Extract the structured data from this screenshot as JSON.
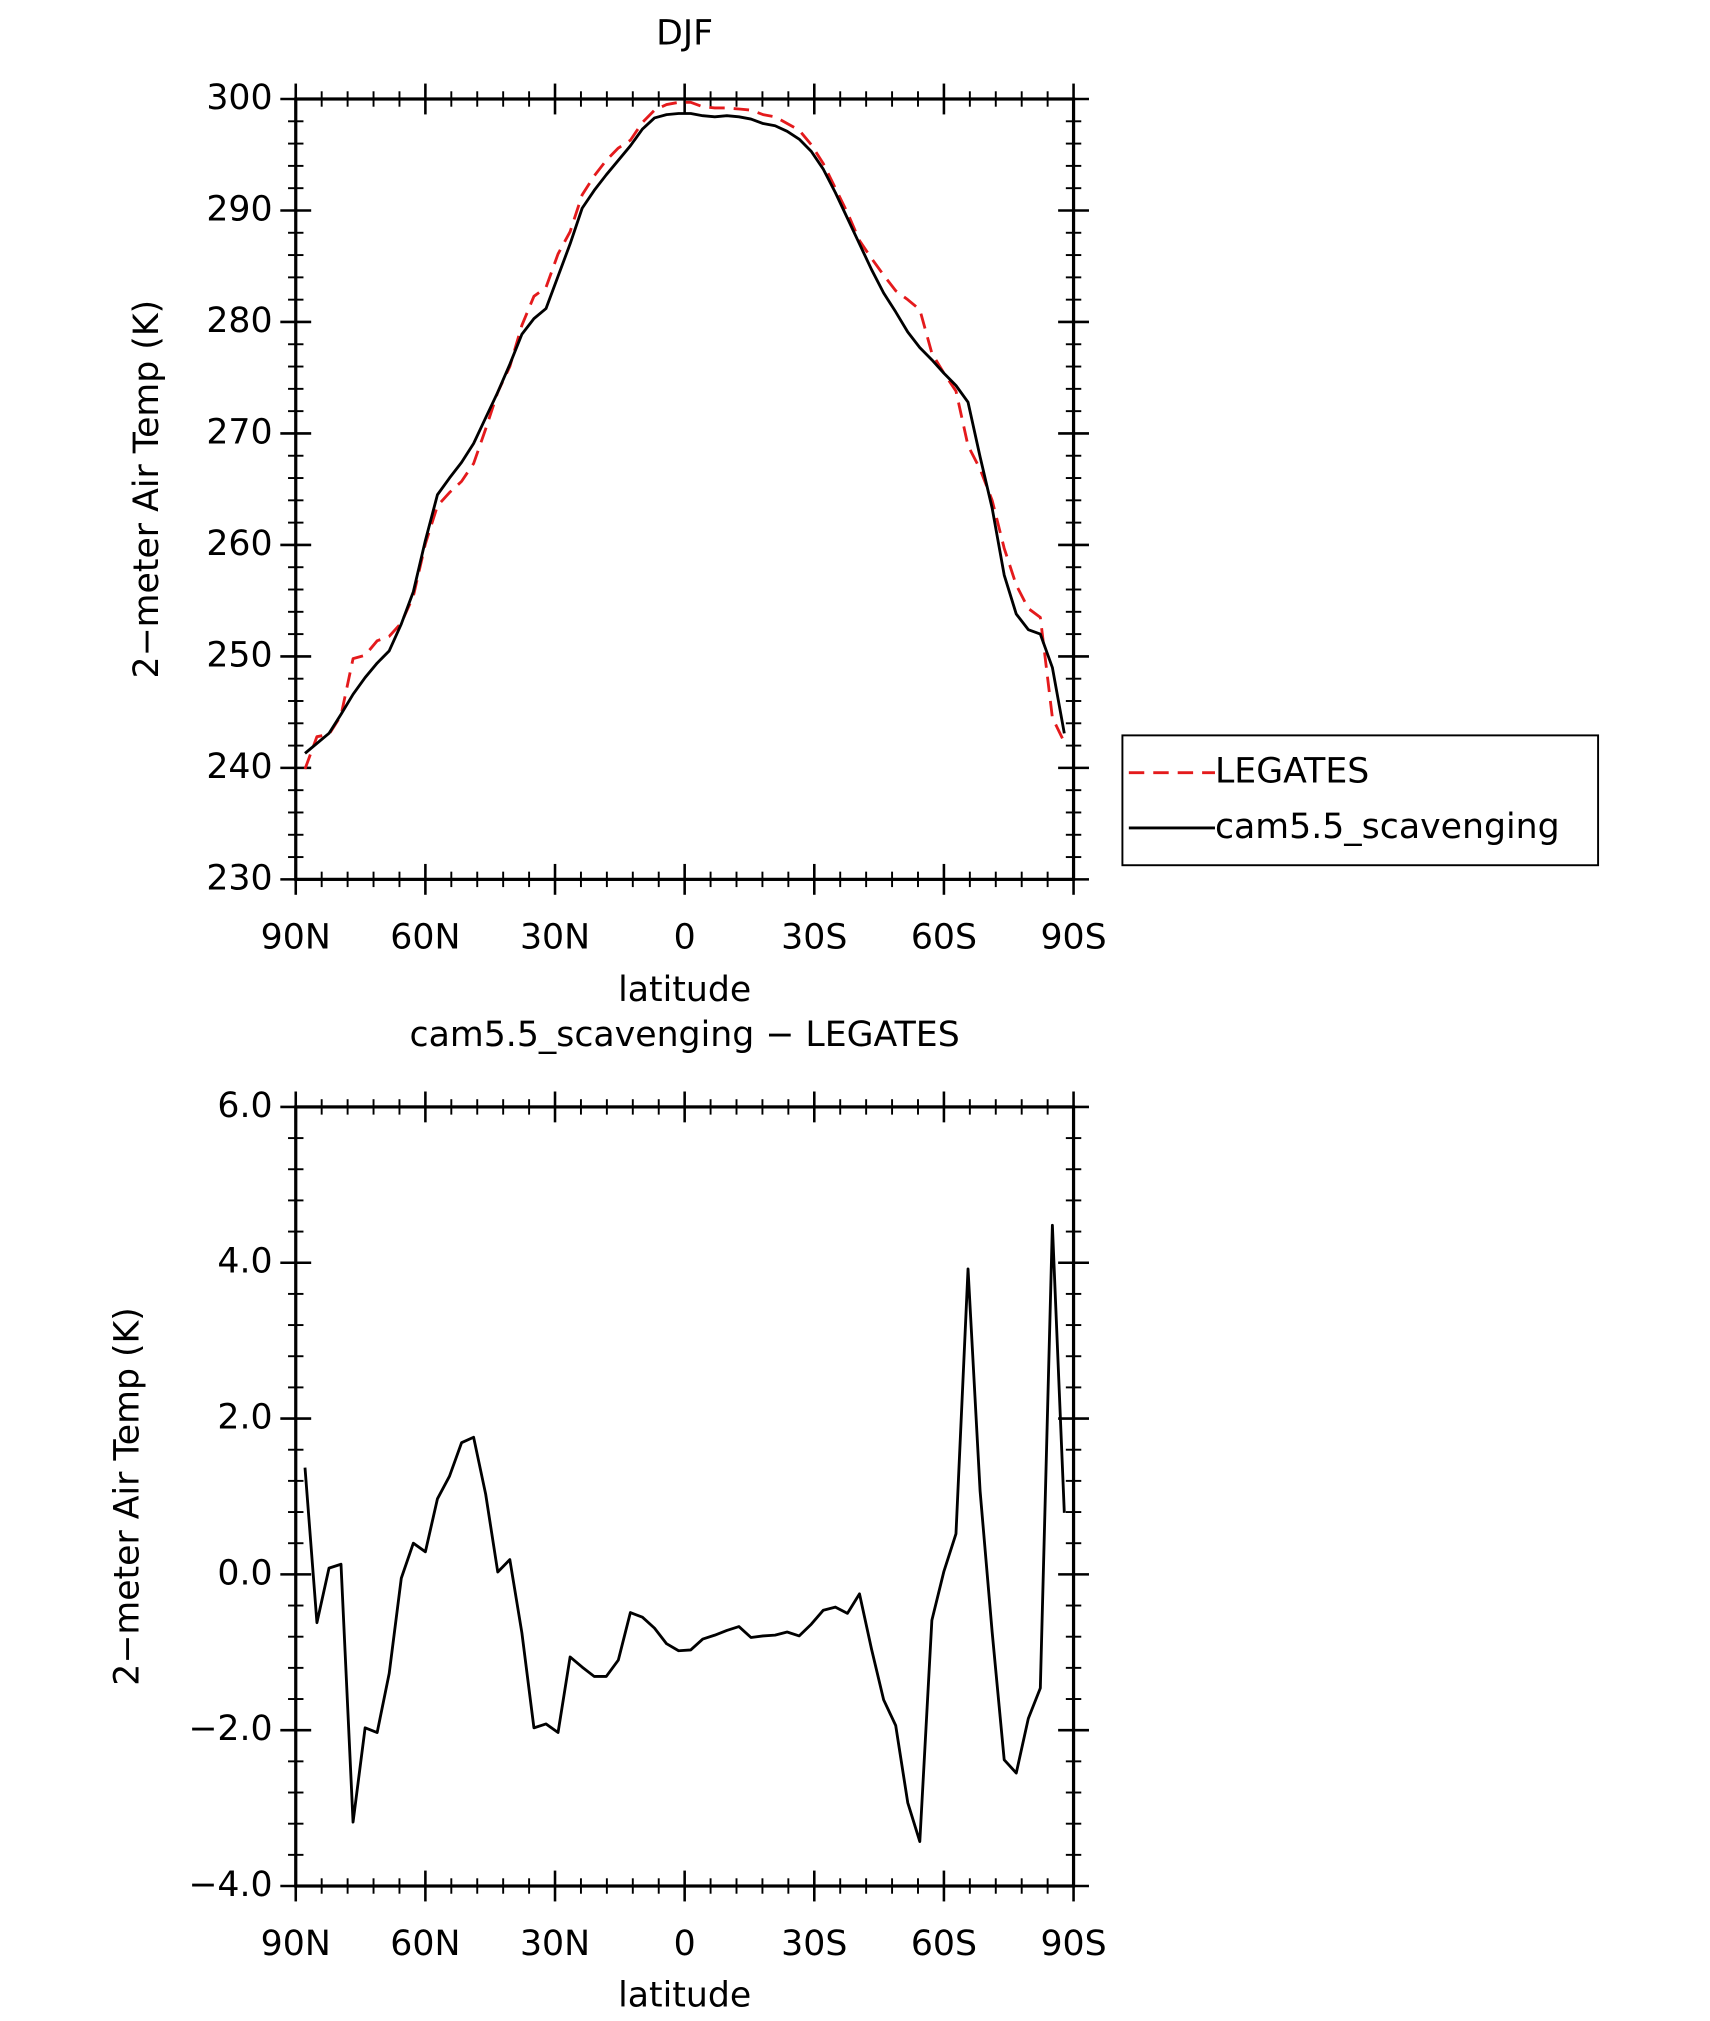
{
  "chart_data": [
    {
      "type": "line",
      "title": "DJF",
      "xlabel": "latitude",
      "ylabel": "2−meter Air Temp (K)",
      "x": [
        87.86,
        85.1,
        82.31,
        79.53,
        76.74,
        73.95,
        71.16,
        68.37,
        65.58,
        62.79,
        60.0,
        57.21,
        54.42,
        51.63,
        48.84,
        46.05,
        43.25,
        40.46,
        37.67,
        34.88,
        32.09,
        29.3,
        26.51,
        23.72,
        20.93,
        18.14,
        15.35,
        12.56,
        9.77,
        6.98,
        4.19,
        1.4,
        -1.4,
        -4.19,
        -6.98,
        -9.77,
        -12.56,
        -15.35,
        -18.14,
        -20.93,
        -23.72,
        -26.51,
        -29.3,
        -32.09,
        -34.88,
        -37.67,
        -40.46,
        -43.25,
        -46.05,
        -48.84,
        -51.63,
        -54.42,
        -57.21,
        -60.0,
        -62.79,
        -65.58,
        -68.37,
        -71.16,
        -73.95,
        -76.74,
        -79.53,
        -82.31,
        -85.1,
        -87.86
      ],
      "series": [
        {
          "name": "LEGATES",
          "color": "#e41a1c",
          "dashed": true,
          "values": [
            239.9,
            242.8,
            243.0,
            244.7,
            249.8,
            250.1,
            251.4,
            251.8,
            253.0,
            255.4,
            260.1,
            263.5,
            264.7,
            265.7,
            267.3,
            270.4,
            273.7,
            276.0,
            279.7,
            282.3,
            283.1,
            286.1,
            288.1,
            291.4,
            293.1,
            294.5,
            295.6,
            296.3,
            297.9,
            299.0,
            299.5,
            299.7,
            299.7,
            299.3,
            299.2,
            299.2,
            299.1,
            299.0,
            298.6,
            298.4,
            297.8,
            297.2,
            295.9,
            294.2,
            292.0,
            289.8,
            287.3,
            285.7,
            284.2,
            282.8,
            282.0,
            281.1,
            277.2,
            275.4,
            273.8,
            268.9,
            266.8,
            264.0,
            259.7,
            256.4,
            254.3,
            253.5,
            244.5,
            242.3
          ]
        },
        {
          "name": "cam5.5_scavenging",
          "color": "#000000",
          "dashed": false,
          "values": [
            241.3,
            242.2,
            243.1,
            244.8,
            246.6,
            248.1,
            249.4,
            250.5,
            252.9,
            255.8,
            260.4,
            264.5,
            266.0,
            267.4,
            269.1,
            271.4,
            273.7,
            276.2,
            278.9,
            280.3,
            281.2,
            284.1,
            287.0,
            290.2,
            291.8,
            293.2,
            294.5,
            295.8,
            297.3,
            298.3,
            298.6,
            298.7,
            298.7,
            298.5,
            298.4,
            298.5,
            298.4,
            298.2,
            297.8,
            297.6,
            297.1,
            296.4,
            295.3,
            293.7,
            291.6,
            289.3,
            287.0,
            284.7,
            282.6,
            280.9,
            279.1,
            277.7,
            276.6,
            275.4,
            274.3,
            272.8,
            267.9,
            263.3,
            257.3,
            253.8,
            252.4,
            252.0,
            249.0,
            243.1
          ]
        }
      ],
      "xlim": [
        90,
        -90
      ],
      "xticks": [
        {
          "value": 90,
          "label": "90N"
        },
        {
          "value": 60,
          "label": "60N"
        },
        {
          "value": 30,
          "label": "30N"
        },
        0,
        {
          "value": -30,
          "label": "30S"
        },
        {
          "value": -60,
          "label": "60S"
        },
        {
          "value": -90,
          "label": "90S"
        }
      ],
      "ylim": [
        230,
        300
      ],
      "yticks": [
        230,
        240,
        250,
        260,
        270,
        280,
        290,
        300
      ],
      "legend": "right"
    },
    {
      "type": "line",
      "title": "cam5.5_scavenging − LEGATES",
      "xlabel": "latitude",
      "ylabel": "2−meter Air Temp (K)",
      "color": "#000000",
      "x": [
        87.86,
        85.1,
        82.31,
        79.53,
        76.74,
        73.95,
        71.16,
        68.37,
        65.58,
        62.79,
        60.0,
        57.21,
        54.42,
        51.63,
        48.84,
        46.05,
        43.25,
        40.46,
        37.67,
        34.88,
        32.09,
        29.3,
        26.51,
        23.72,
        20.93,
        18.14,
        15.35,
        12.56,
        9.77,
        6.98,
        4.19,
        1.4,
        -1.4,
        -4.19,
        -6.98,
        -9.77,
        -12.56,
        -15.35,
        -18.14,
        -20.93,
        -23.72,
        -26.51,
        -29.3,
        -32.09,
        -34.88,
        -37.67,
        -40.46,
        -43.25,
        -46.05,
        -48.84,
        -51.63,
        -54.42,
        -57.21,
        -60.0,
        -62.79,
        -65.58,
        -68.37,
        -71.16,
        -73.95,
        -76.74,
        -79.53,
        -82.31,
        -85.1,
        -87.86
      ],
      "values": [
        1.37,
        -0.62,
        0.08,
        0.13,
        -3.18,
        -1.97,
        -2.03,
        -1.27,
        -0.05,
        0.4,
        0.29,
        0.97,
        1.26,
        1.69,
        1.76,
        1.03,
        0.03,
        0.19,
        -0.75,
        -1.97,
        -1.92,
        -2.03,
        -1.06,
        -1.19,
        -1.31,
        -1.31,
        -1.1,
        -0.49,
        -0.55,
        -0.69,
        -0.89,
        -0.98,
        -0.97,
        -0.83,
        -0.78,
        -0.72,
        -0.67,
        -0.81,
        -0.79,
        -0.78,
        -0.74,
        -0.79,
        -0.64,
        -0.46,
        -0.42,
        -0.5,
        -0.25,
        -0.96,
        -1.61,
        -1.94,
        -2.93,
        -3.43,
        -0.59,
        0.04,
        0.52,
        3.92,
        1.07,
        -0.74,
        -2.38,
        -2.55,
        -1.85,
        -1.46,
        4.48,
        0.79
      ],
      "xlim": [
        90,
        -90
      ],
      "xticks": [
        {
          "value": 90,
          "label": "90N"
        },
        {
          "value": 60,
          "label": "60N"
        },
        {
          "value": 30,
          "label": "30N"
        },
        0,
        {
          "value": -30,
          "label": "30S"
        },
        {
          "value": -60,
          "label": "60S"
        },
        {
          "value": -90,
          "label": "90S"
        }
      ],
      "ylim": [
        -4,
        6
      ],
      "yticks": [
        {
          "value": -4,
          "label": "−4.0"
        },
        {
          "value": -2,
          "label": "−2.0"
        },
        {
          "value": 0,
          "label": "0.0"
        },
        {
          "value": 2,
          "label": "2.0"
        },
        {
          "value": 4,
          "label": "4.0"
        },
        {
          "value": 6,
          "label": "6.0"
        }
      ]
    }
  ]
}
